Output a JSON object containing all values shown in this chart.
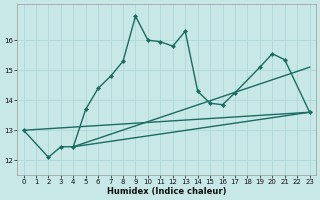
{
  "background_color": "#c8e8e8",
  "grid_color": "#aad4d4",
  "line_color": "#1a6b60",
  "xlabel": "Humidex (Indice chaleur)",
  "xlim": [
    -0.5,
    23.5
  ],
  "ylim": [
    11.5,
    17.2
  ],
  "yticks": [
    12,
    13,
    14,
    15,
    16
  ],
  "xticks": [
    0,
    1,
    2,
    3,
    4,
    5,
    6,
    7,
    8,
    9,
    10,
    11,
    12,
    13,
    14,
    15,
    16,
    17,
    18,
    19,
    20,
    21,
    22,
    23
  ],
  "curve1_x": [
    0,
    2,
    3,
    4,
    5,
    6,
    7,
    8,
    9,
    10,
    11,
    12,
    13,
    14,
    15,
    16,
    17,
    19,
    20,
    21,
    23
  ],
  "curve1_y": [
    13.0,
    12.1,
    12.45,
    12.45,
    13.7,
    14.4,
    14.8,
    15.3,
    16.8,
    16.0,
    15.95,
    15.8,
    16.3,
    14.3,
    13.9,
    13.85,
    14.25,
    15.1,
    15.55,
    15.35,
    13.6
  ],
  "line2_x": [
    0,
    23
  ],
  "line2_y": [
    13.0,
    13.6
  ],
  "line3_x": [
    4,
    23
  ],
  "line3_y": [
    12.45,
    13.6
  ],
  "line4_x": [
    4,
    23
  ],
  "line4_y": [
    12.45,
    15.1
  ]
}
